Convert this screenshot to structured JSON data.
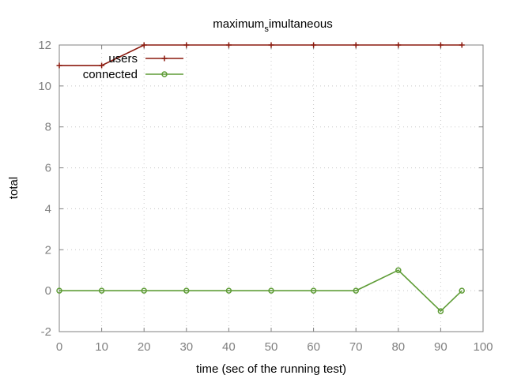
{
  "chart_data": {
    "type": "line",
    "title": "maximum",
    "title_subscript": "s",
    "title_rest": "imultaneous",
    "xlabel": "time (sec of the running test)",
    "ylabel": "total",
    "xlim": [
      0,
      100
    ],
    "ylim": [
      -2,
      12
    ],
    "xticks": [
      0,
      10,
      20,
      30,
      40,
      50,
      60,
      70,
      80,
      90,
      100
    ],
    "yticks": [
      -2,
      0,
      2,
      4,
      6,
      8,
      10,
      12
    ],
    "grid": true,
    "legend_position": "top-left",
    "series": [
      {
        "name": "users",
        "color": "#8b1a0e",
        "marker": "plus",
        "x": [
          0,
          10,
          20,
          30,
          40,
          50,
          60,
          70,
          80,
          90,
          95
        ],
        "y": [
          11,
          11,
          12,
          12,
          12,
          12,
          12,
          12,
          12,
          12,
          12
        ]
      },
      {
        "name": "connected",
        "color": "#5e9c36",
        "marker": "circle",
        "x": [
          0,
          10,
          20,
          30,
          40,
          50,
          60,
          70,
          80,
          90,
          95
        ],
        "y": [
          0,
          0,
          0,
          0,
          0,
          0,
          0,
          0,
          1,
          -1,
          0
        ]
      }
    ]
  }
}
